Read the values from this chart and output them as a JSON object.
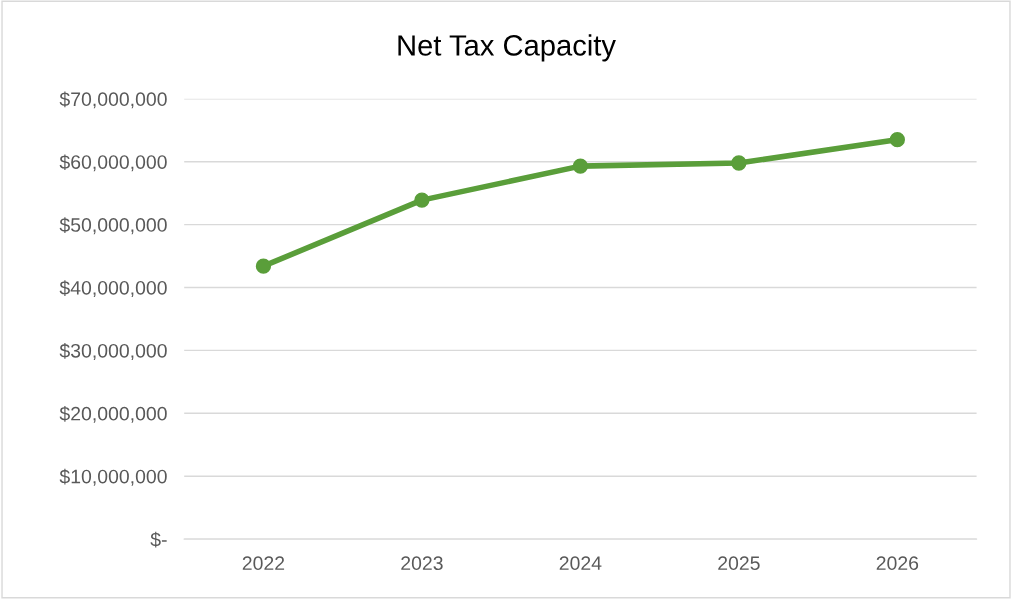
{
  "chart_data": {
    "type": "line",
    "title": "Net Tax Capacity",
    "categories": [
      "2022",
      "2023",
      "2024",
      "2025",
      "2026"
    ],
    "series": [
      {
        "color": "#5a9e3a",
        "values": [
          43400000,
          53900000,
          59300000,
          59800000,
          63500000
        ]
      }
    ],
    "ylim": [
      0,
      70000000
    ],
    "yticks": [
      {
        "value": 0,
        "label": "$-"
      },
      {
        "value": 10000000,
        "label": "$10,000,000"
      },
      {
        "value": 20000000,
        "label": "$20,000,000"
      },
      {
        "value": 30000000,
        "label": "$30,000,000"
      },
      {
        "value": 40000000,
        "label": "$40,000,000"
      },
      {
        "value": 50000000,
        "label": "$50,000,000"
      },
      {
        "value": 60000000,
        "label": "$60,000,000"
      },
      {
        "value": 70000000,
        "label": "$70,000,000"
      }
    ],
    "grid": "y",
    "marker": "circle",
    "line_style": "solid"
  }
}
